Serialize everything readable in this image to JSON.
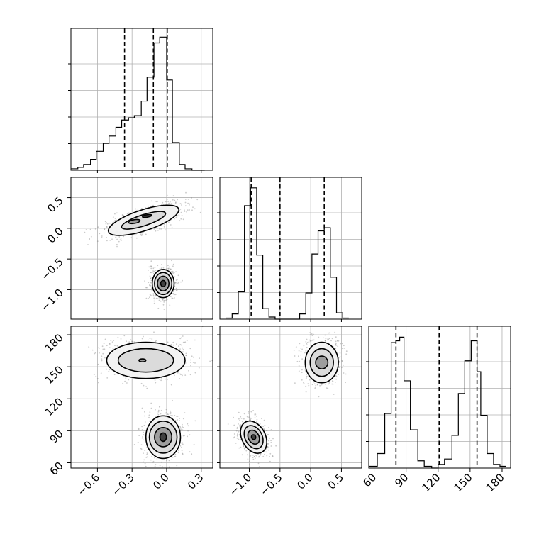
{
  "chart_data": {
    "type": "corner",
    "grid": true,
    "parameters": [
      {
        "id": "p0",
        "range": [
          -0.83,
          0.4
        ],
        "ticks": [
          -0.6,
          -0.3,
          0.0,
          0.3
        ],
        "tick_labels": [
          "−0.6",
          "−0.3",
          "0.0",
          "0.3"
        ]
      },
      {
        "id": "p1",
        "range": [
          -1.48,
          0.83
        ],
        "ticks": [
          -1.0,
          -0.5,
          0.0,
          0.5
        ],
        "tick_labels": [
          "−1.0",
          "−0.5",
          "0.0",
          "0.5"
        ]
      },
      {
        "id": "p2",
        "range": [
          55,
          188
        ],
        "ticks": [
          60,
          90,
          120,
          150,
          180
        ],
        "tick_labels": [
          "60",
          "90",
          "120",
          "150",
          "180"
        ]
      }
    ],
    "quantiles": {
      "p0": [
        -0.365,
        -0.115,
        0.005
      ],
      "p1": [
        -0.97,
        -0.5,
        0.22
      ],
      "p2": [
        80.5,
        121.0,
        156.5
      ]
    },
    "histograms": [
      {
        "param": "p0",
        "bin_edges": [
          -0.83,
          -0.77,
          -0.72,
          -0.66,
          -0.61,
          -0.55,
          -0.5,
          -0.44,
          -0.39,
          -0.33,
          -0.28,
          -0.22,
          -0.17,
          -0.11,
          -0.06,
          0.0,
          0.05,
          0.11,
          0.16,
          0.22,
          0.27,
          0.33
        ],
        "counts": [
          0.2,
          0.4,
          0.8,
          1.5,
          2.6,
          3.7,
          4.7,
          5.9,
          6.9,
          7.2,
          7.5,
          9.5,
          12.8,
          17.5,
          18.3,
          12.4,
          3.8,
          0.8,
          0.2,
          0.0,
          0.0
        ],
        "ylim": [
          0,
          19.5
        ]
      },
      {
        "param": "p1",
        "bin_edges": [
          -1.38,
          -1.28,
          -1.18,
          -1.08,
          -0.98,
          -0.88,
          -0.78,
          -0.68,
          -0.58,
          -0.48,
          -0.38,
          -0.28,
          -0.18,
          -0.08,
          0.02,
          0.12,
          0.22,
          0.32,
          0.42,
          0.52,
          0.62
        ],
        "counts": [
          0.1,
          0.5,
          2.6,
          10.8,
          12.5,
          6.1,
          1.0,
          0.2,
          0.0,
          0.0,
          0.0,
          0.0,
          0.5,
          2.5,
          6.2,
          8.4,
          8.7,
          4.0,
          0.6,
          0.1
        ],
        "ylim": [
          0,
          13.5
        ]
      },
      {
        "param": "p2",
        "bin_edges": [
          55,
          63,
          70,
          76,
          80.5,
          84,
          88,
          94,
          101,
          107,
          114,
          120,
          126,
          133,
          139,
          145,
          151,
          156.5,
          160,
          166,
          172,
          178,
          184
        ],
        "counts": [
          0.1,
          0.8,
          3.0,
          6.9,
          7.0,
          7.2,
          4.8,
          2.1,
          0.4,
          0.1,
          0.0,
          0.2,
          0.5,
          1.8,
          4.1,
          5.9,
          7.0,
          5.3,
          2.9,
          0.8,
          0.2,
          0.1
        ],
        "ylim": [
          0,
          7.8
        ]
      }
    ],
    "pairs": [
      {
        "x": "p0",
        "y": "p1",
        "modes": [
          {
            "center": [
              -0.2,
              0.13
            ],
            "contours": [
              {
                "rx": 0.32,
                "ry": 0.17,
                "angle": 18
              },
              {
                "rx": 0.2,
                "ry": 0.09,
                "angle": 18
              },
              {
                "rx": 0.05,
                "ry": 0.03,
                "angle": 10,
                "dx": -0.08,
                "dy": -0.02
              },
              {
                "rx": 0.04,
                "ry": 0.02,
                "angle": 10,
                "dx": 0.03,
                "dy": 0.07
              }
            ]
          },
          {
            "center": [
              -0.03,
              -0.9
            ],
            "contours": [
              {
                "rx": 0.095,
                "ry": 0.23,
                "angle": 0
              },
              {
                "rx": 0.075,
                "ry": 0.18,
                "angle": 0
              },
              {
                "rx": 0.05,
                "ry": 0.12,
                "angle": 0
              },
              {
                "rx": 0.022,
                "ry": 0.05,
                "angle": 0
              }
            ]
          }
        ]
      },
      {
        "x": "p0",
        "y": "p2",
        "modes": [
          {
            "center": [
              -0.18,
              156
            ],
            "contours": [
              {
                "rx": 0.34,
                "ry": 17,
                "angle": 0
              },
              {
                "rx": 0.24,
                "ry": 11,
                "angle": 0
              },
              {
                "rx": 0.03,
                "ry": 1.4,
                "angle": 0,
                "dx": -0.03,
                "dy": 0
              }
            ]
          },
          {
            "center": [
              -0.03,
              84
            ],
            "contours": [
              {
                "rx": 0.15,
                "ry": 20,
                "angle": 0
              },
              {
                "rx": 0.12,
                "ry": 15,
                "angle": 0
              },
              {
                "rx": 0.075,
                "ry": 9,
                "angle": 0
              },
              {
                "rx": 0.028,
                "ry": 4,
                "angle": 0
              }
            ]
          }
        ]
      },
      {
        "x": "p1",
        "y": "p2",
        "modes": [
          {
            "center": [
              0.18,
              154
            ],
            "contours": [
              {
                "rx": 0.27,
                "ry": 19,
                "angle": 0
              },
              {
                "rx": 0.19,
                "ry": 13,
                "angle": 0
              },
              {
                "rx": 0.1,
                "ry": 6,
                "angle": 0
              }
            ]
          },
          {
            "center": [
              -0.93,
              84
            ],
            "contours": [
              {
                "rx": 0.28,
                "ry": 11,
                "angle": -62
              },
              {
                "rx": 0.2,
                "ry": 8,
                "angle": -62
              },
              {
                "rx": 0.12,
                "ry": 5,
                "angle": -62
              },
              {
                "rx": 0.04,
                "ry": 2,
                "angle": -62
              }
            ]
          }
        ]
      }
    ]
  }
}
